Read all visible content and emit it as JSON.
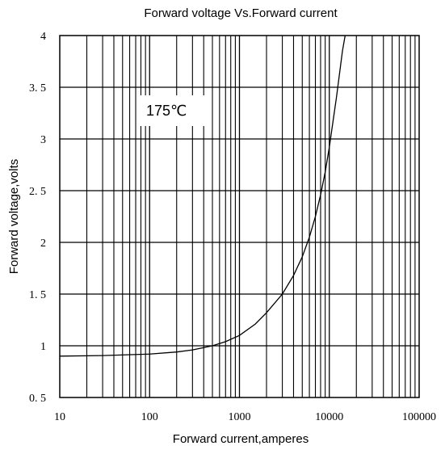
{
  "chart_data": {
    "type": "line",
    "title": "Forward  voltage  Vs.Forward  current",
    "xlabel": "Forward  current,amperes",
    "ylabel": "Forward  voltage,volts",
    "x_scale": "log",
    "xlim": [
      10,
      100000
    ],
    "ylim": [
      0.5,
      4
    ],
    "x_ticks": [
      10,
      100,
      1000,
      10000,
      100000
    ],
    "x_tick_labels": [
      "10",
      "100",
      "1000",
      "10000",
      "100000"
    ],
    "y_ticks": [
      0.5,
      1,
      1.5,
      2,
      2.5,
      3,
      3.5,
      4
    ],
    "y_tick_labels": [
      "0. 5",
      "1",
      "1. 5",
      "2",
      "2. 5",
      "3",
      "3. 5",
      "4"
    ],
    "grid": true,
    "legend": "none",
    "annotation": {
      "text": "175℃",
      "x": 40,
      "y": 3.3
    },
    "series": [
      {
        "color": "#000000",
        "x": [
          10,
          30,
          100,
          200,
          300,
          500,
          700,
          1000,
          1500,
          2000,
          3000,
          4000,
          5000,
          6000,
          7000,
          8000,
          9000,
          10000,
          12000,
          14000,
          15000
        ],
        "y": [
          0.9,
          0.905,
          0.92,
          0.94,
          0.96,
          1.0,
          1.04,
          1.1,
          1.21,
          1.32,
          1.5,
          1.68,
          1.86,
          2.05,
          2.25,
          2.46,
          2.68,
          2.92,
          3.4,
          3.85,
          4.0
        ]
      }
    ]
  }
}
